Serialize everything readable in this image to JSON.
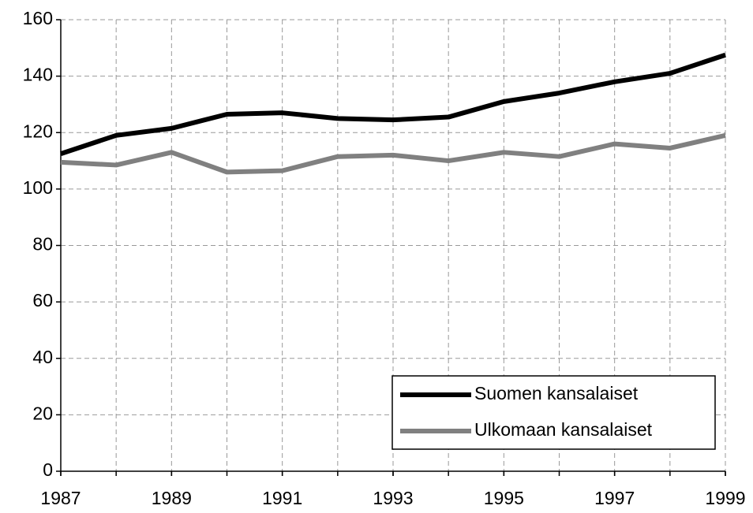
{
  "chart_data": {
    "type": "line",
    "x": [
      1987,
      1988,
      1989,
      1990,
      1991,
      1992,
      1993,
      1994,
      1995,
      1996,
      1997,
      1998,
      1999
    ],
    "series": [
      {
        "name": "Suomen kansalaiset",
        "color": "#000000",
        "values": [
          112.5,
          119,
          121.5,
          126.5,
          127,
          125,
          124.5,
          125.5,
          131,
          134,
          138,
          141,
          147.5
        ]
      },
      {
        "name": "Ulkomaan kansalaiset",
        "color": "#808080",
        "values": [
          109.5,
          108.5,
          113,
          106,
          106.5,
          111.5,
          112,
          110,
          113,
          111.5,
          116,
          114.5,
          119
        ]
      }
    ],
    "xlim": [
      1987,
      1999
    ],
    "xticks": [
      1987,
      1989,
      1991,
      1993,
      1995,
      1997,
      1999
    ],
    "ylim": [
      0,
      160
    ],
    "yticks": [
      0,
      20,
      40,
      60,
      80,
      100,
      120,
      140,
      160
    ],
    "grid": true,
    "legend": "lower right"
  }
}
